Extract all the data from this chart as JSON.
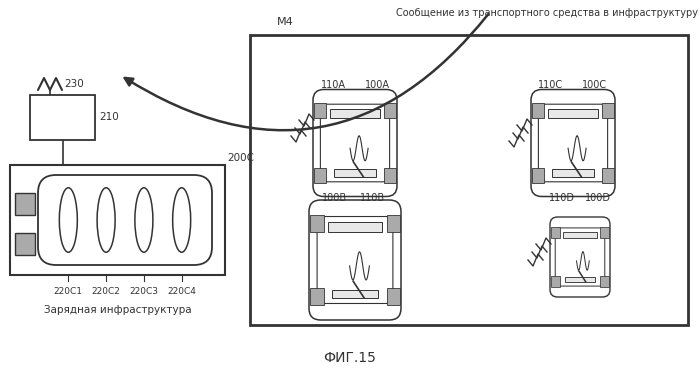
{
  "title": "ФИГ.15",
  "top_label": "Сообщение из транспортного средства в инфраструктуру",
  "arrow_label": "M4",
  "infra_label": "Зарядная инфраструктура",
  "fig_bg": "#ffffff",
  "labels_220": [
    "220C1",
    "220C2",
    "220C3",
    "220C4"
  ],
  "label_230": "230",
  "label_210": "210",
  "label_200C": "200C"
}
